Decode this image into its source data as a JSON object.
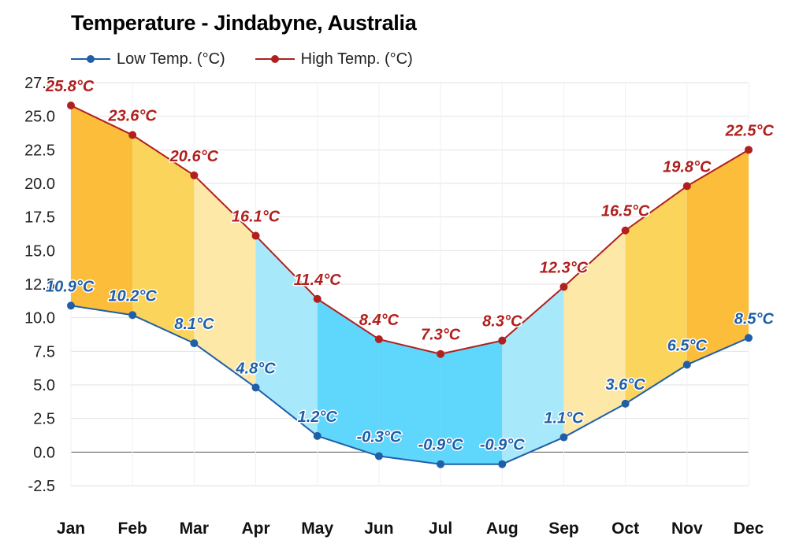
{
  "chart_data": {
    "type": "area",
    "title": "Temperature - Jindabyne, Australia",
    "categories": [
      "Jan",
      "Feb",
      "Mar",
      "Apr",
      "May",
      "Jun",
      "Jul",
      "Aug",
      "Sep",
      "Oct",
      "Nov",
      "Dec"
    ],
    "series": [
      {
        "name": "Low Temp. (°C)",
        "color": "#1f5fa8",
        "values": [
          10.9,
          10.2,
          8.1,
          4.8,
          1.2,
          -0.3,
          -0.9,
          -0.9,
          1.1,
          3.6,
          6.5,
          8.5
        ],
        "labels": [
          "10.9°C",
          "10.2°C",
          "8.1°C",
          "4.8°C",
          "1.2°C",
          "-0.3°C",
          "-0.9°C",
          "-0.9°C",
          "1.1°C",
          "3.6°C",
          "6.5°C",
          "8.5°C"
        ]
      },
      {
        "name": "High Temp. (°C)",
        "color": "#b0201e",
        "values": [
          25.8,
          23.6,
          20.6,
          16.1,
          11.4,
          8.4,
          7.3,
          8.3,
          12.3,
          16.5,
          19.8,
          22.5
        ],
        "labels": [
          "25.8°C",
          "23.6°C",
          "20.6°C",
          "16.1°C",
          "11.4°C",
          "8.4°C",
          "7.3°C",
          "8.3°C",
          "12.3°C",
          "16.5°C",
          "19.8°C",
          "22.5°C"
        ]
      }
    ],
    "band_colors": [
      "#fbbd3a",
      "#fbd45c",
      "#fde8a8",
      "#a8e8fb",
      "#5fd6fb",
      "#5fd6fb",
      "#5fd6fb",
      "#a8e8fb",
      "#fde8a8",
      "#fbd45c",
      "#fbbd3a",
      "#fbbd3a"
    ],
    "ylim": [
      -4,
      28
    ],
    "yticks": [
      "27.5",
      "25.0",
      "22.5",
      "20.0",
      "17.5",
      "15.0",
      "12.5",
      "10.0",
      "7.5",
      "5.0",
      "2.5",
      "0.0",
      "-2.5"
    ],
    "grid": true,
    "legend": "top-left"
  }
}
